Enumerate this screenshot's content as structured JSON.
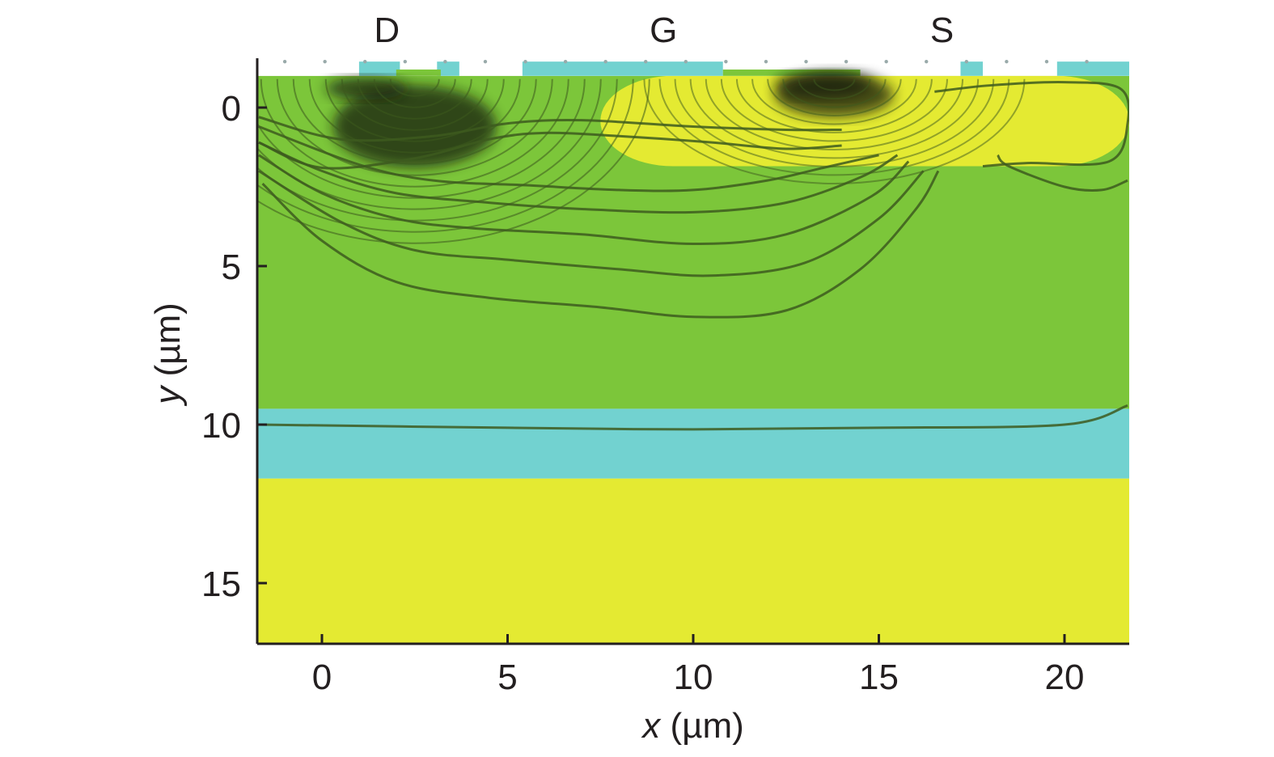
{
  "chart_data": {
    "type": "heatmap",
    "title": "",
    "xlabel": {
      "var": "x",
      "unit": " (µm)"
    },
    "ylabel": {
      "var": "y",
      "unit": " (µm)"
    },
    "xlim": [
      -1.75,
      21.75
    ],
    "ylim": [
      -1.5,
      17
    ],
    "y_axis_inverted": true,
    "x_ticks": [
      0,
      5,
      10,
      15,
      20
    ],
    "y_ticks": [
      0,
      5,
      10,
      15
    ],
    "grid": false,
    "terminals": [
      {
        "label": "D",
        "x": 1.75
      },
      {
        "label": "G",
        "x": 9.2
      },
      {
        "label": "S",
        "x": 16.7
      }
    ],
    "colors": {
      "green": "#7cc63a",
      "yellow": "#e4ea32",
      "cyan": "#72d2d0",
      "contour": "#3d5a1e",
      "dark": "#141a0c",
      "axis": "#231f20"
    },
    "regions": [
      {
        "name": "yellow-substrate",
        "x": [
          -1.75,
          21.75
        ],
        "y": [
          11.7,
          17
        ],
        "color": "yellow"
      },
      {
        "name": "cyan-layer",
        "x": [
          -1.75,
          21.75
        ],
        "y": [
          9.5,
          11.7
        ],
        "color": "cyan"
      },
      {
        "name": "green-body",
        "x": [
          -1.75,
          21.75
        ],
        "y": [
          -1.0,
          9.5
        ],
        "color": "green"
      },
      {
        "name": "yellow-source-well",
        "x": [
          7.5,
          21.75
        ],
        "y": [
          -1.0,
          1.85
        ],
        "color": "yellow"
      }
    ],
    "contours": [
      [
        [
          -1.7,
          0.6
        ],
        [
          1,
          1.8
        ],
        [
          3,
          2.3
        ],
        [
          5.5,
          2.45
        ],
        [
          8,
          2.6
        ],
        [
          10,
          2.6
        ],
        [
          12,
          2.3
        ],
        [
          13.5,
          1.9
        ],
        [
          15,
          1.5
        ]
      ],
      [
        [
          -1.7,
          1.1
        ],
        [
          0,
          2.0
        ],
        [
          2,
          2.7
        ],
        [
          4.5,
          3.0
        ],
        [
          7,
          3.2
        ],
        [
          10,
          3.3
        ],
        [
          12.5,
          3.0
        ],
        [
          14.5,
          2.2
        ],
        [
          15.5,
          1.5
        ]
      ],
      [
        [
          -1.7,
          1.5
        ],
        [
          0,
          2.7
        ],
        [
          2,
          3.5
        ],
        [
          4,
          3.8
        ],
        [
          7,
          4.0
        ],
        [
          10,
          4.3
        ],
        [
          12.5,
          4.0
        ],
        [
          14.8,
          2.8
        ],
        [
          15.8,
          1.7
        ]
      ],
      [
        [
          -1.7,
          2.0
        ],
        [
          0.5,
          3.6
        ],
        [
          2.5,
          4.5
        ],
        [
          5,
          4.8
        ],
        [
          8,
          5.1
        ],
        [
          10.5,
          5.3
        ],
        [
          13,
          4.9
        ],
        [
          15,
          3.5
        ],
        [
          16.2,
          2.0
        ]
      ],
      [
        [
          -1.6,
          2.4
        ],
        [
          0,
          4.2
        ],
        [
          2,
          5.5
        ],
        [
          4.5,
          6.0
        ],
        [
          7.5,
          6.3
        ],
        [
          10,
          6.6
        ],
        [
          12.5,
          6.4
        ],
        [
          14.5,
          5.1
        ],
        [
          16,
          3.2
        ],
        [
          16.6,
          2.0
        ]
      ],
      [
        [
          -1.7,
          1.1
        ],
        [
          0,
          1.9
        ],
        [
          2.5,
          1.6
        ],
        [
          4.5,
          1.0
        ],
        [
          6,
          0.8
        ],
        [
          8,
          0.9
        ],
        [
          10.5,
          1.1
        ],
        [
          12.5,
          1.3
        ],
        [
          14,
          1.2
        ]
      ],
      [
        [
          -1.7,
          0.3
        ],
        [
          0.5,
          1.0
        ],
        [
          3,
          0.9
        ],
        [
          5,
          0.5
        ],
        [
          7,
          0.4
        ],
        [
          10,
          0.6
        ],
        [
          12.5,
          0.7
        ],
        [
          14,
          0.7
        ]
      ],
      [
        [
          18.2,
          1.5
        ],
        [
          18.5,
          1.85
        ],
        [
          20,
          2.5
        ],
        [
          21,
          2.6
        ],
        [
          21.7,
          2.3
        ]
      ],
      [
        [
          16.5,
          -0.5
        ],
        [
          18,
          -0.7
        ],
        [
          20,
          -0.8
        ],
        [
          21.5,
          -0.6
        ],
        [
          21.7,
          0.5
        ],
        [
          21.2,
          1.7
        ],
        [
          19,
          1.75
        ],
        [
          17.8,
          1.85
        ]
      ],
      [
        [
          -1.7,
          10.0
        ],
        [
          5,
          10.1
        ],
        [
          10,
          10.15
        ],
        [
          15,
          10.1
        ],
        [
          20,
          10.0
        ],
        [
          21.7,
          9.4
        ]
      ]
    ],
    "dark_spots": [
      {
        "x": 2.5,
        "y": 0.6,
        "rx": 2.2,
        "ry": 1.3
      },
      {
        "x": 1.2,
        "y": -0.6,
        "rx": 1.1,
        "ry": 0.35
      },
      {
        "x": 13.5,
        "y": -0.7,
        "rx": 1.3,
        "ry": 0.4
      },
      {
        "x": 13.8,
        "y": -0.4,
        "rx": 1.6,
        "ry": 0.7
      }
    ]
  }
}
